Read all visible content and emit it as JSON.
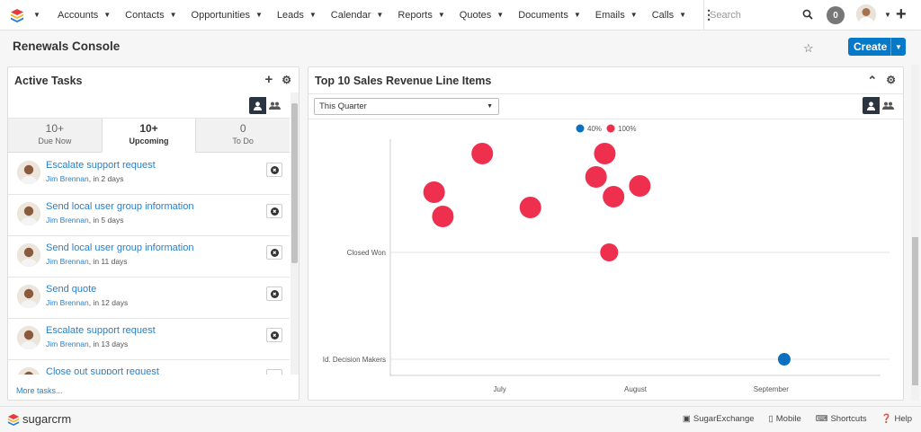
{
  "nav": {
    "items": [
      {
        "label": "Accounts"
      },
      {
        "label": "Contacts"
      },
      {
        "label": "Opportunities"
      },
      {
        "label": "Leads"
      },
      {
        "label": "Calendar"
      },
      {
        "label": "Reports"
      },
      {
        "label": "Quotes"
      },
      {
        "label": "Documents"
      },
      {
        "label": "Emails"
      },
      {
        "label": "Calls"
      }
    ],
    "search_placeholder": "Search",
    "notification_count": "0"
  },
  "header": {
    "title": "Renewals Console",
    "create_label": "Create"
  },
  "active_tasks": {
    "title": "Active Tasks",
    "tabs": [
      {
        "count": "10+",
        "label": "Due Now"
      },
      {
        "count": "10+",
        "label": "Upcoming"
      },
      {
        "count": "0",
        "label": "To Do"
      }
    ],
    "tasks": [
      {
        "name": "Escalate support request",
        "assignee": "Jim Brennan",
        "due": ", in 2 days"
      },
      {
        "name": "Send local user group information",
        "assignee": "Jim Brennan",
        "due": ", in 5 days"
      },
      {
        "name": "Send local user group information",
        "assignee": "Jim Brennan",
        "due": ", in 11 days"
      },
      {
        "name": "Send quote",
        "assignee": "Jim Brennan",
        "due": ", in 12 days"
      },
      {
        "name": "Escalate support request",
        "assignee": "Jim Brennan",
        "due": ", in 13 days"
      },
      {
        "name": "Close out support request",
        "assignee": "",
        "due": ""
      }
    ],
    "more_label": "More tasks..."
  },
  "revenue": {
    "title": "Top 10 Sales Revenue Line Items",
    "filter_value": "This Quarter"
  },
  "chart_data": {
    "type": "scatter",
    "title": "",
    "legend": [
      {
        "name": "40%",
        "color": "#0b70c0"
      },
      {
        "name": "100%",
        "color": "#ee2f4d"
      }
    ],
    "legend_position": "top-center",
    "x_ticks": [
      "July",
      "August",
      "September"
    ],
    "y_ticks": [
      "Id. Decision Makers",
      "Closed Won"
    ],
    "grid": true,
    "points": [
      {
        "x": "2024-07-01",
        "y": "above Closed Won",
        "series": "100%",
        "r": "large"
      },
      {
        "x": "2024-06-20",
        "y": "above Closed Won",
        "series": "100%",
        "r": "large"
      },
      {
        "x": "2024-06-22",
        "y": "above Closed Won",
        "series": "100%",
        "r": "large"
      },
      {
        "x": "2024-07-12",
        "y": "above Closed Won",
        "series": "100%",
        "r": "large"
      },
      {
        "x": "2024-07-27",
        "y": "above Closed Won",
        "series": "100%",
        "r": "large"
      },
      {
        "x": "2024-07-29",
        "y": "above Closed Won",
        "series": "100%",
        "r": "large"
      },
      {
        "x": "2024-07-31",
        "y": "above Closed Won",
        "series": "100%",
        "r": "large"
      },
      {
        "x": "2024-08-06",
        "y": "above Closed Won",
        "series": "100%",
        "r": "large"
      },
      {
        "x": "2024-07-30",
        "y": "Closed Won",
        "series": "100%",
        "r": "medium"
      },
      {
        "x": "2024-09-08",
        "y": "Id. Decision Makers",
        "series": "40%",
        "r": "small"
      }
    ]
  },
  "footer": {
    "brand": "sugarcrm",
    "links": [
      {
        "label": "SugarExchange",
        "icon": "store-icon"
      },
      {
        "label": "Mobile",
        "icon": "mobile-icon"
      },
      {
        "label": "Shortcuts",
        "icon": "keyboard-icon"
      },
      {
        "label": "Help",
        "icon": "help-icon"
      }
    ]
  }
}
